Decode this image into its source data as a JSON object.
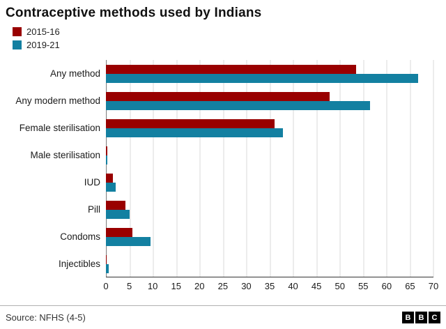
{
  "chart_data": {
    "type": "bar",
    "orientation": "horizontal",
    "title": "Contraceptive methods used by Indians",
    "categories": [
      "Any method",
      "Any modern method",
      "Female sterilisation",
      "Male sterilisation",
      "IUD",
      "Pill",
      "Condoms",
      "Injectibles"
    ],
    "series": [
      {
        "name": "2015-16",
        "color": "#990000",
        "values": [
          53.5,
          47.8,
          36.0,
          0.3,
          1.5,
          4.1,
          5.6,
          0.2
        ]
      },
      {
        "name": "2019-21",
        "color": "#1380A1",
        "values": [
          66.7,
          56.5,
          37.9,
          0.3,
          2.1,
          5.1,
          9.5,
          0.6
        ]
      }
    ],
    "xlim": [
      0,
      70
    ],
    "x_ticks": [
      0,
      5,
      10,
      15,
      20,
      25,
      30,
      35,
      40,
      45,
      50,
      55,
      60,
      65,
      70
    ],
    "xlabel": "",
    "ylabel": "",
    "grid": "vertical",
    "legend_position": "top-left"
  },
  "footer": {
    "source": "Source: NFHS (4-5)",
    "logo_letters": [
      "B",
      "B",
      "C"
    ]
  }
}
